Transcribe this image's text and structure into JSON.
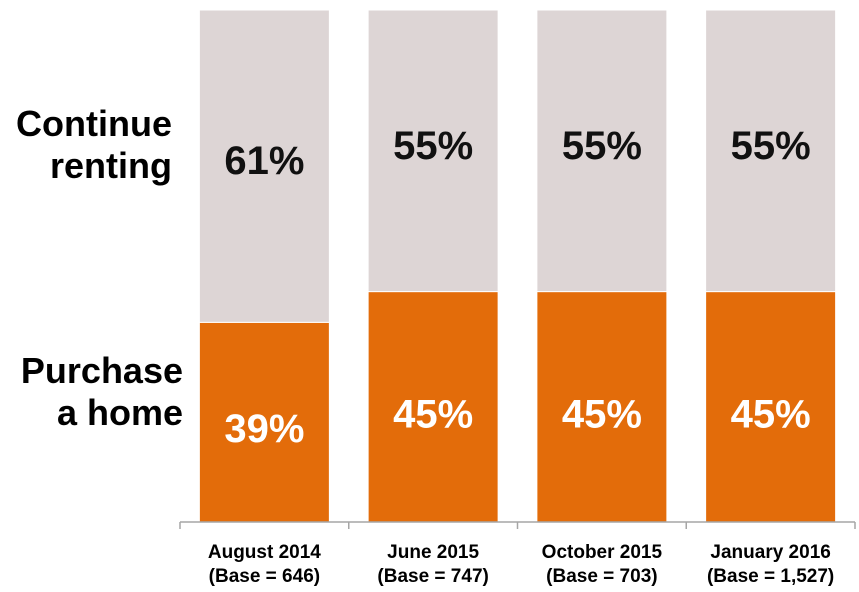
{
  "chart_data": {
    "type": "bar",
    "stacked": true,
    "categories": [
      "August 2014",
      "June 2015",
      "October 2015",
      "January 2016"
    ],
    "bases": [
      "(Base = 646)",
      "(Base = 747)",
      "(Base = 703)",
      "(Base = 1,527)"
    ],
    "series": [
      {
        "name": "Purchase a home",
        "values": [
          39,
          45,
          45,
          45
        ],
        "labels": [
          "39%",
          "45%",
          "45%",
          "45%"
        ],
        "color": "#e36c0a",
        "label_color": "#ffffff"
      },
      {
        "name": "Continue renting",
        "values": [
          61,
          55,
          55,
          55
        ],
        "labels": [
          "61%",
          "55%",
          "55%",
          "55%"
        ],
        "color": "#ddd5d5",
        "label_color": "#111111"
      }
    ],
    "row_labels": {
      "top": [
        "Continue",
        "renting"
      ],
      "bottom": [
        "Purchase",
        "a home"
      ]
    },
    "ylim": [
      0,
      100
    ],
    "axis_color": "#a6a6a6"
  }
}
